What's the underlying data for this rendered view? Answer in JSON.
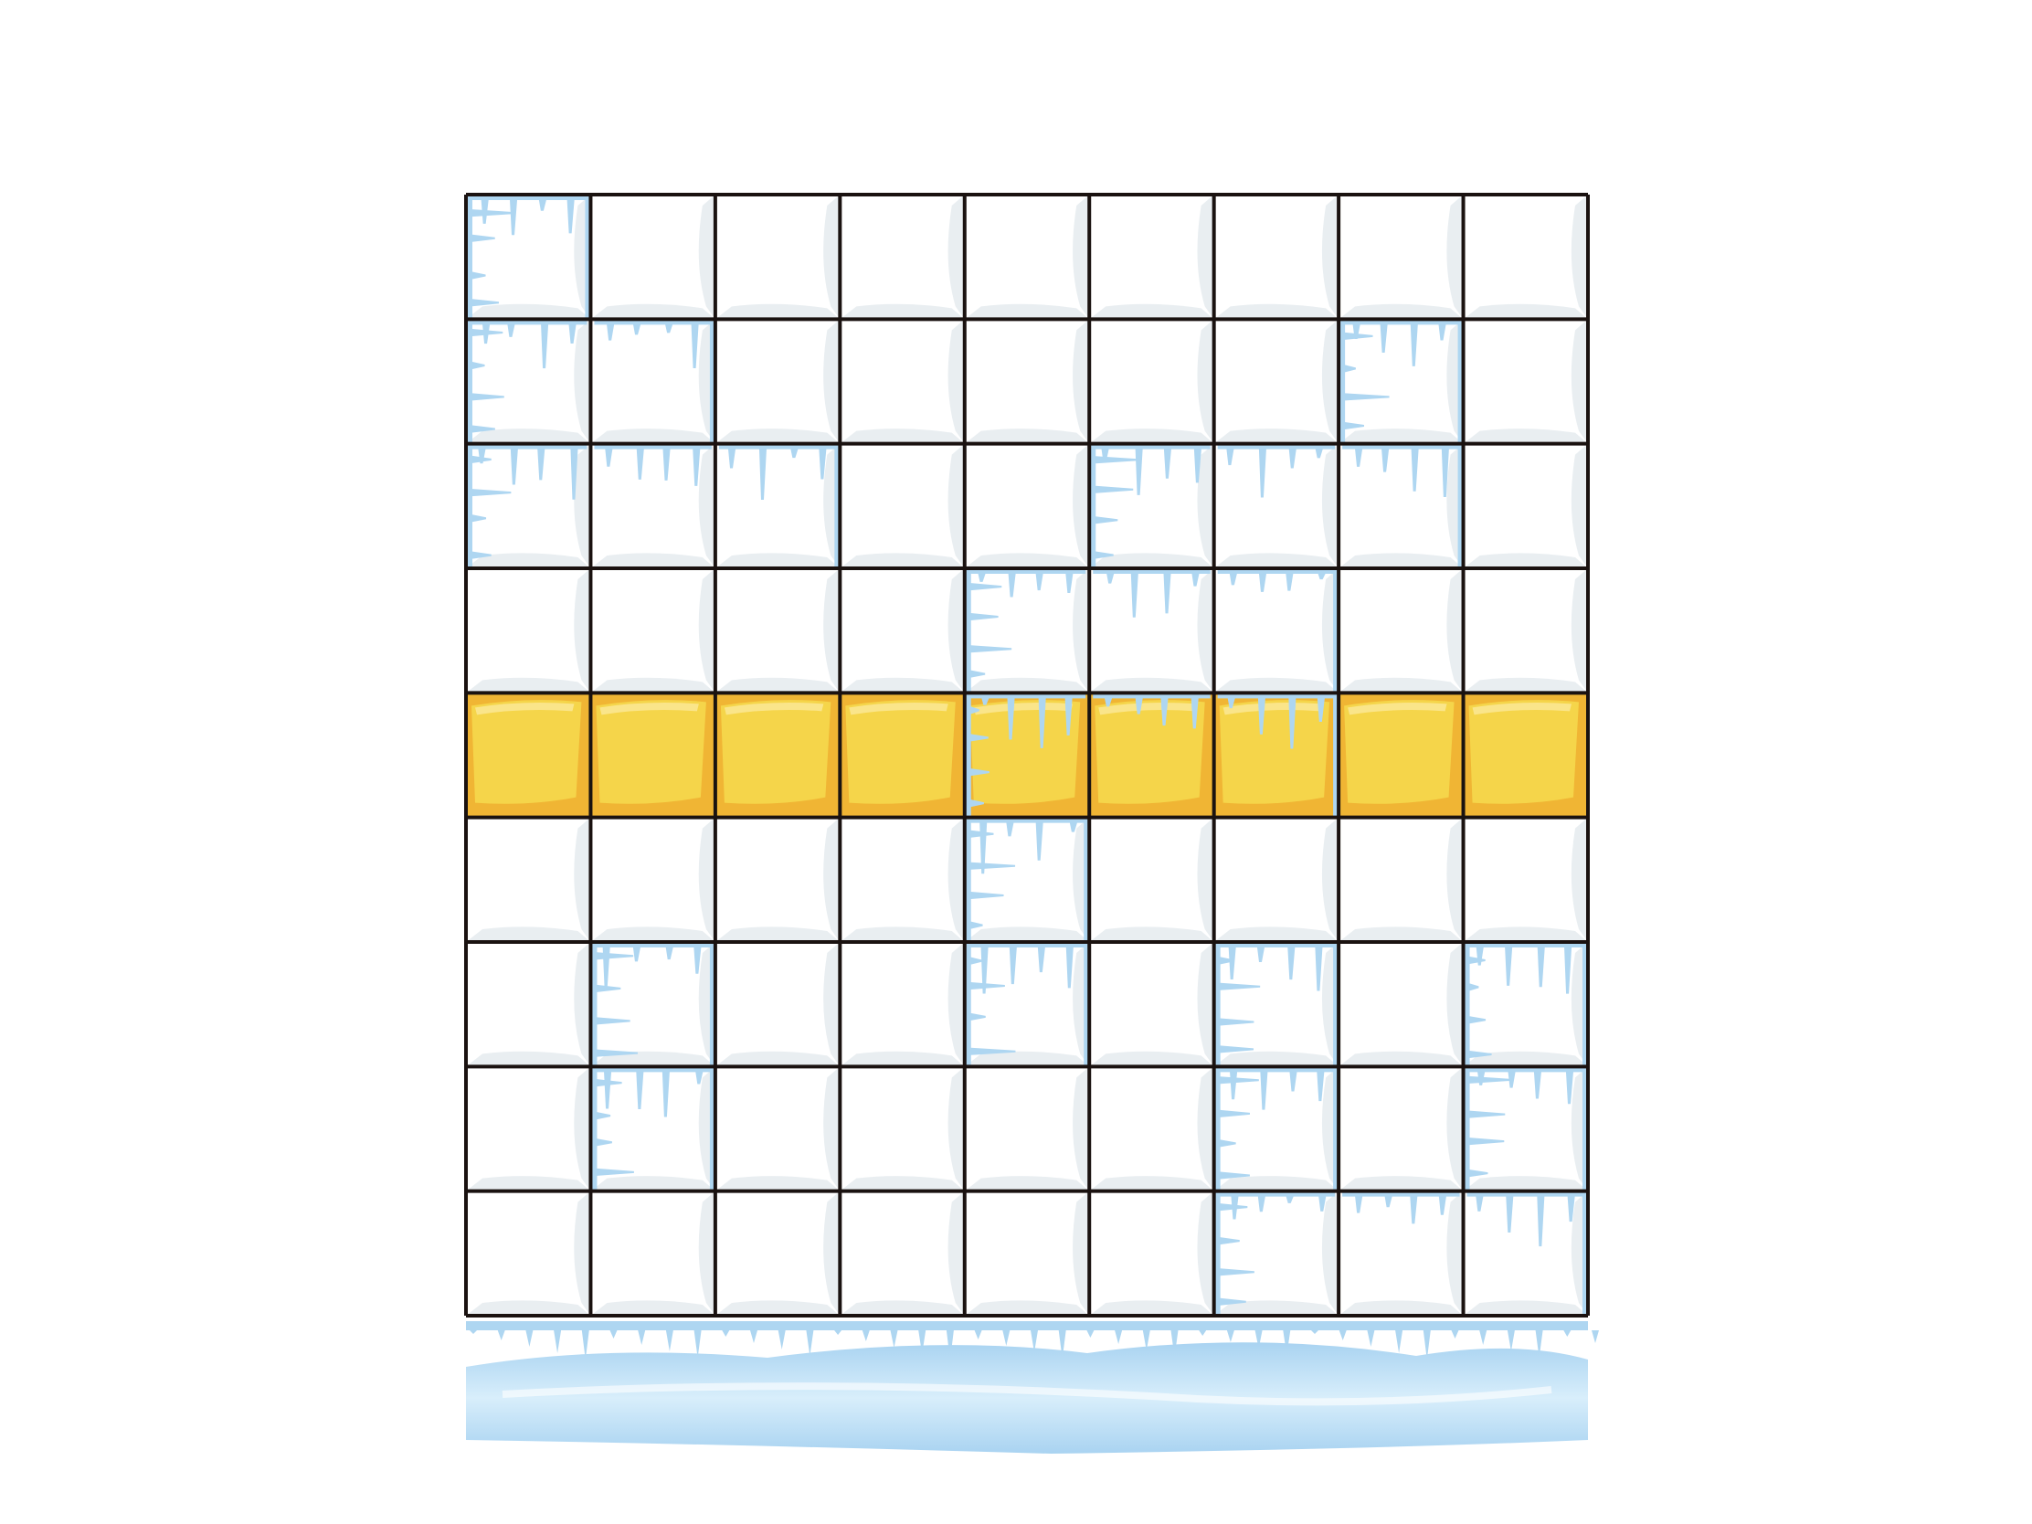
{
  "puzzle": {
    "rows": 9,
    "cols": 9,
    "highlighted_row": 5,
    "cells_text": []
  },
  "colors": {
    "background": "#ffffff",
    "cell_face": "#ffffff",
    "cell_shadow": "#e9eef1",
    "grid_line": "#1a1210",
    "ice": "#aed6f1",
    "ice_light": "#d6ecfa",
    "highlight": "#f5d54a",
    "highlight_shade": "#f0b534",
    "highlight_gloss": "#fbe89a"
  },
  "icons": {
    "ice_floor": "ice-floor-icon",
    "icicle": "icicle-icon"
  },
  "frozen_cells": [
    [
      1,
      1
    ],
    [
      2,
      1
    ],
    [
      3,
      1
    ],
    [
      2,
      2
    ],
    [
      3,
      2
    ],
    [
      3,
      3
    ],
    [
      2,
      8
    ],
    [
      3,
      7
    ],
    [
      3,
      8
    ],
    [
      3,
      6
    ],
    [
      4,
      5
    ],
    [
      4,
      6
    ],
    [
      4,
      7
    ],
    [
      5,
      5
    ],
    [
      5,
      6
    ],
    [
      5,
      7
    ],
    [
      6,
      5
    ],
    [
      7,
      5
    ],
    [
      7,
      2
    ],
    [
      8,
      2
    ],
    [
      7,
      7
    ],
    [
      8,
      7
    ],
    [
      9,
      7
    ],
    [
      7,
      9
    ],
    [
      8,
      9
    ],
    [
      9,
      9
    ],
    [
      9,
      8
    ]
  ]
}
